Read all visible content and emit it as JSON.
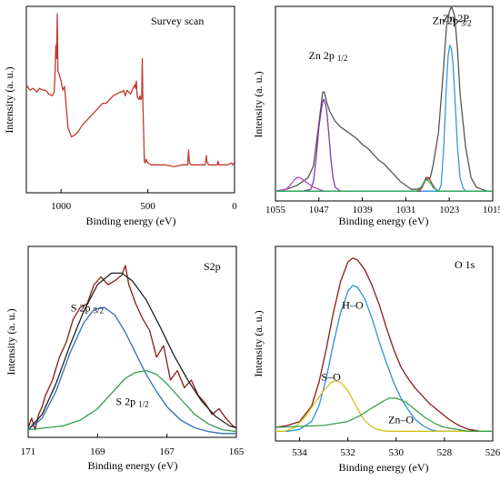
{
  "chart_data": [
    {
      "type": "line",
      "title": "Survey scan",
      "xlabel": "Binding energy (eV)",
      "ylabel": "Intensity (a. u.)",
      "xlim": [
        1200,
        0
      ],
      "x_reversed": true,
      "xticks": [
        "1000",
        "500",
        "0"
      ],
      "xtick_values": [
        1000,
        500,
        0
      ],
      "ylim": [
        0,
        1
      ],
      "series": [
        {
          "color": "#c0392b",
          "x": [
            1200,
            1180,
            1160,
            1140,
            1125,
            1105,
            1090,
            1070,
            1050,
            1040,
            1035,
            1030,
            1026,
            1022,
            1018,
            1012,
            1000,
            990,
            980,
            960,
            940,
            920,
            900,
            880,
            860,
            840,
            820,
            800,
            780,
            760,
            740,
            720,
            700,
            680,
            660,
            650,
            640,
            630,
            620,
            600,
            580,
            575,
            570,
            566,
            562,
            558,
            550,
            545,
            540,
            535,
            532,
            528,
            520,
            515,
            510,
            505,
            500,
            480,
            460,
            440,
            400,
            350,
            300,
            280,
            270,
            265,
            260,
            250,
            240,
            230,
            200,
            170,
            162,
            160,
            150,
            140,
            120,
            100,
            95,
            90,
            85,
            80,
            60,
            40,
            20,
            10,
            5
          ],
          "y": [
            0.58,
            0.55,
            0.56,
            0.54,
            0.56,
            0.55,
            0.55,
            0.53,
            0.52,
            0.54,
            0.63,
            0.79,
            0.72,
            0.96,
            0.65,
            0.64,
            0.6,
            0.55,
            0.57,
            0.35,
            0.3,
            0.31,
            0.33,
            0.36,
            0.38,
            0.4,
            0.42,
            0.44,
            0.46,
            0.48,
            0.48,
            0.5,
            0.52,
            0.53,
            0.54,
            0.54,
            0.55,
            0.52,
            0.55,
            0.53,
            0.57,
            0.58,
            0.56,
            0.6,
            0.52,
            0.51,
            0.5,
            0.52,
            0.5,
            0.51,
            0.72,
            0.48,
            0.17,
            0.16,
            0.18,
            0.17,
            0.16,
            0.15,
            0.15,
            0.15,
            0.15,
            0.14,
            0.15,
            0.15,
            0.15,
            0.23,
            0.16,
            0.15,
            0.15,
            0.15,
            0.15,
            0.15,
            0.2,
            0.17,
            0.15,
            0.15,
            0.15,
            0.15,
            0.17,
            0.15,
            0.15,
            0.15,
            0.15,
            0.15,
            0.16,
            0.15,
            0.16
          ]
        }
      ]
    },
    {
      "type": "line",
      "title": "Zn 2P",
      "xlabel": "Binding energy (eV)",
      "ylabel": "Intensity (a. u.)",
      "xlim": [
        1055,
        1015
      ],
      "x_reversed": true,
      "xticks": [
        "1055",
        "1047",
        "1039",
        "1031",
        "1023",
        "1015"
      ],
      "xtick_values": [
        1055,
        1047,
        1039,
        1031,
        1023,
        1015
      ],
      "ylim": [
        0,
        1
      ],
      "annotations": [
        {
          "text": "Zn 2p",
          "sub": "1/2",
          "x": 1045.3,
          "y": 0.73
        },
        {
          "text": "Zn 2p",
          "sub": "3/2",
          "x": 1022.5,
          "y": 0.91
        }
      ],
      "series": [
        {
          "color": "#555555",
          "x": [
            1055,
            1053,
            1051,
            1050.5,
            1050,
            1049,
            1048,
            1047,
            1046.3,
            1046,
            1045.5,
            1045,
            1044,
            1043,
            1042,
            1041,
            1040,
            1039,
            1038,
            1037,
            1036,
            1035,
            1034,
            1033,
            1032,
            1031,
            1030,
            1029,
            1028,
            1027.3,
            1027,
            1026.5,
            1026,
            1025,
            1024,
            1023.5,
            1023,
            1022.6,
            1022,
            1021.5,
            1021,
            1020,
            1019,
            1018,
            1017,
            1016,
            1015
          ],
          "y": [
            0.05,
            0.06,
            0.08,
            0.09,
            0.1,
            0.12,
            0.18,
            0.4,
            0.56,
            0.56,
            0.5,
            0.46,
            0.41,
            0.38,
            0.36,
            0.34,
            0.32,
            0.29,
            0.27,
            0.24,
            0.21,
            0.19,
            0.16,
            0.13,
            0.1,
            0.08,
            0.06,
            0.06,
            0.07,
            0.12,
            0.11,
            0.12,
            0.18,
            0.35,
            0.7,
            0.9,
            0.97,
            1.0,
            0.95,
            0.78,
            0.55,
            0.28,
            0.12,
            0.07,
            0.06,
            0.05,
            0.05
          ]
        },
        {
          "color": "#7b3fa0",
          "x": [
            1055,
            1050,
            1048.5,
            1048,
            1047.5,
            1047,
            1046.5,
            1046.2,
            1046,
            1045.6,
            1045.2,
            1044.8,
            1044.4,
            1044,
            1043,
            1042,
            1040,
            1030,
            1015
          ],
          "y": [
            0.05,
            0.05,
            0.06,
            0.1,
            0.22,
            0.38,
            0.48,
            0.52,
            0.52,
            0.47,
            0.35,
            0.22,
            0.12,
            0.07,
            0.05,
            0.05,
            0.05,
            0.05,
            0.05
          ]
        },
        {
          "color": "#b04ab0",
          "x": [
            1055,
            1053,
            1052,
            1051.5,
            1051,
            1050.5,
            1050,
            1049,
            1048,
            1047,
            1046,
            1045,
            1044,
            1030,
            1015
          ],
          "y": [
            0.05,
            0.06,
            0.09,
            0.11,
            0.12,
            0.12,
            0.11,
            0.09,
            0.07,
            0.06,
            0.05,
            0.05,
            0.05,
            0.05,
            0.05
          ]
        },
        {
          "color": "#3498db",
          "x": [
            1055,
            1030,
            1025,
            1024.5,
            1024,
            1023.6,
            1023.2,
            1022.9,
            1022.6,
            1022.3,
            1022,
            1021.5,
            1021,
            1020.5,
            1020,
            1019,
            1015
          ],
          "y": [
            0.05,
            0.05,
            0.05,
            0.08,
            0.28,
            0.55,
            0.75,
            0.8,
            0.78,
            0.7,
            0.55,
            0.28,
            0.12,
            0.07,
            0.05,
            0.05,
            0.05
          ]
        },
        {
          "color": "#c0392b",
          "x": [
            1055,
            1030,
            1028.5,
            1028,
            1027.5,
            1027.2,
            1026.8,
            1026.4,
            1026,
            1025.5,
            1025,
            1020,
            1015
          ],
          "y": [
            0.05,
            0.05,
            0.05,
            0.07,
            0.1,
            0.12,
            0.12,
            0.1,
            0.08,
            0.06,
            0.05,
            0.05,
            0.05
          ]
        },
        {
          "color": "#27ae60",
          "x": [
            1055,
            1030,
            1029,
            1028.5,
            1028,
            1027.6,
            1027.2,
            1026.8,
            1026.4,
            1026,
            1025.5,
            1025,
            1024,
            1020,
            1015
          ],
          "y": [
            0.05,
            0.05,
            0.05,
            0.06,
            0.08,
            0.1,
            0.11,
            0.1,
            0.09,
            0.07,
            0.06,
            0.05,
            0.05,
            0.05,
            0.05
          ]
        }
      ]
    },
    {
      "type": "line",
      "title": "S2p",
      "xlabel": "Binding energy (eV)",
      "ylabel": "Intensity (a. u.)",
      "xlim": [
        171,
        165
      ],
      "x_reversed": true,
      "xticks": [
        "171",
        "169",
        "167",
        "165"
      ],
      "xtick_values": [
        171,
        169,
        167,
        165
      ],
      "ylim": [
        0,
        1
      ],
      "annotations": [
        {
          "text": "S 2p",
          "sub": "3/2",
          "x": 169.3,
          "y": 0.66
        },
        {
          "text": "S 2p",
          "sub": "1/2",
          "x": 168.0,
          "y": 0.17
        }
      ],
      "series": [
        {
          "color": "#8b1a1a",
          "x": [
            171,
            170.9,
            170.8,
            170.7,
            170.6,
            170.5,
            170.3,
            170.1,
            169.9,
            169.7,
            169.5,
            169.3,
            169.1,
            168.9,
            168.7,
            168.5,
            168.3,
            168.2,
            168.1,
            167.9,
            167.7,
            167.5,
            167.3,
            167.1,
            166.9,
            166.7,
            166.5,
            166.3,
            166.1,
            165.9,
            165.7,
            165.5,
            165.3,
            165.1,
            165
          ],
          "y": [
            0.05,
            0.1,
            0.04,
            0.12,
            0.16,
            0.22,
            0.3,
            0.42,
            0.5,
            0.62,
            0.68,
            0.7,
            0.8,
            0.84,
            0.8,
            0.82,
            0.85,
            0.9,
            0.8,
            0.7,
            0.62,
            0.56,
            0.42,
            0.48,
            0.3,
            0.35,
            0.26,
            0.3,
            0.22,
            0.18,
            0.12,
            0.15,
            0.1,
            0.06,
            0.05
          ]
        },
        {
          "color": "#222222",
          "x": [
            171,
            170.6,
            170.2,
            169.8,
            169.4,
            169.0,
            168.6,
            168.3,
            168.0,
            167.6,
            167.2,
            166.8,
            166.4,
            166.0,
            165.6,
            165.2,
            165
          ],
          "y": [
            0.04,
            0.12,
            0.28,
            0.48,
            0.66,
            0.8,
            0.86,
            0.86,
            0.82,
            0.72,
            0.58,
            0.43,
            0.3,
            0.19,
            0.11,
            0.06,
            0.05
          ]
        },
        {
          "color": "#2e6fb7",
          "x": [
            171,
            170.6,
            170.2,
            169.8,
            169.4,
            169.1,
            168.8,
            168.5,
            168.2,
            167.9,
            167.6,
            167.3,
            167.0,
            166.6,
            166.2,
            165.8,
            165.4,
            165
          ],
          "y": [
            0.04,
            0.1,
            0.24,
            0.44,
            0.6,
            0.67,
            0.68,
            0.64,
            0.55,
            0.44,
            0.33,
            0.24,
            0.16,
            0.09,
            0.05,
            0.03,
            0.02,
            0.02
          ]
        },
        {
          "color": "#2e9e4f",
          "x": [
            171,
            170.5,
            170.0,
            169.5,
            169.0,
            168.6,
            168.2,
            167.9,
            167.6,
            167.3,
            167.0,
            166.6,
            166.2,
            165.8,
            165.4,
            165
          ],
          "y": [
            0.04,
            0.05,
            0.06,
            0.09,
            0.15,
            0.23,
            0.31,
            0.34,
            0.35,
            0.33,
            0.28,
            0.2,
            0.12,
            0.07,
            0.04,
            0.03
          ]
        }
      ]
    },
    {
      "type": "line",
      "title": "O 1s",
      "xlabel": "Binding energy (eV)",
      "ylabel": "Intensity (a. u.)",
      "xlim": [
        535,
        526
      ],
      "x_reversed": true,
      "xticks": [
        "534",
        "532",
        "530",
        "528",
        "526"
      ],
      "xtick_values": [
        534,
        532,
        530,
        528,
        526
      ],
      "ylim": [
        0,
        1
      ],
      "annotations": [
        {
          "text": "H–O",
          "x": 531.8,
          "y": 0.68
        },
        {
          "text": "S–O",
          "x": 532.7,
          "y": 0.31
        },
        {
          "text": "Zn–O",
          "x": 529.8,
          "y": 0.09
        }
      ],
      "series": [
        {
          "color": "#8b1a1a",
          "x": [
            535,
            534.5,
            534,
            533.5,
            533.2,
            532.9,
            532.6,
            532.3,
            532.0,
            531.8,
            531.6,
            531.3,
            531.0,
            530.7,
            530.4,
            530.1,
            529.8,
            529.5,
            529.2,
            528.9,
            528.6,
            528.2,
            527.8,
            527.4,
            527.0,
            526.5,
            526
          ],
          "y": [
            0.07,
            0.08,
            0.1,
            0.18,
            0.3,
            0.47,
            0.66,
            0.82,
            0.92,
            0.94,
            0.93,
            0.88,
            0.8,
            0.7,
            0.58,
            0.47,
            0.38,
            0.32,
            0.27,
            0.23,
            0.19,
            0.15,
            0.11,
            0.08,
            0.06,
            0.05,
            0.05
          ]
        },
        {
          "color": "#2a90e0",
          "x": [
            535,
            534.5,
            534,
            533.5,
            533.2,
            532.9,
            532.6,
            532.3,
            532.0,
            531.8,
            531.6,
            531.3,
            531.0,
            530.7,
            530.4,
            530.1,
            529.8,
            529.5,
            529.2,
            528.9,
            528.6,
            528.3,
            528,
            527.5,
            527,
            526
          ],
          "y": [
            0.05,
            0.05,
            0.06,
            0.1,
            0.18,
            0.32,
            0.5,
            0.66,
            0.77,
            0.8,
            0.79,
            0.73,
            0.63,
            0.51,
            0.4,
            0.3,
            0.22,
            0.16,
            0.11,
            0.08,
            0.06,
            0.05,
            0.05,
            0.05,
            0.05,
            0.05
          ]
        },
        {
          "color": "#d4c21a",
          "x": [
            535,
            534.6,
            534.2,
            533.8,
            533.4,
            533.0,
            532.7,
            532.5,
            532.3,
            532.0,
            531.7,
            531.4,
            531.1,
            530.8,
            530.4,
            530,
            526
          ],
          "y": [
            0.05,
            0.05,
            0.07,
            0.12,
            0.19,
            0.26,
            0.3,
            0.31,
            0.3,
            0.26,
            0.19,
            0.12,
            0.08,
            0.06,
            0.05,
            0.05,
            0.05
          ]
        },
        {
          "color": "#3aa14a",
          "x": [
            535,
            533,
            532,
            531.5,
            531.0,
            530.6,
            530.3,
            530.0,
            529.6,
            529.2,
            528.8,
            528.4,
            528,
            527.5,
            527,
            526
          ],
          "y": [
            0.07,
            0.08,
            0.1,
            0.13,
            0.17,
            0.2,
            0.22,
            0.22,
            0.2,
            0.16,
            0.12,
            0.09,
            0.07,
            0.06,
            0.05,
            0.05
          ]
        }
      ]
    }
  ]
}
